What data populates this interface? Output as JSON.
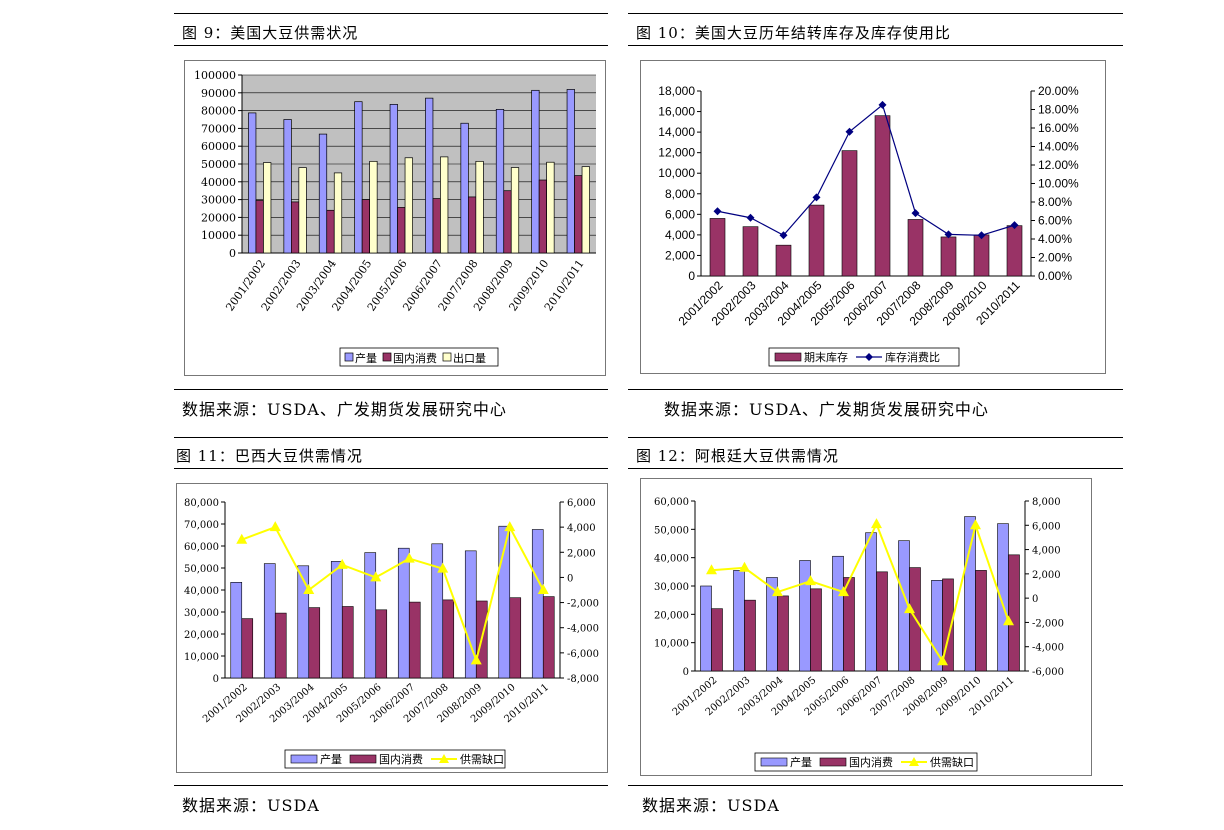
{
  "panels": [
    {
      "title": "图 9：美国大豆供需状况",
      "source": "数据来源：USDA、广发期货发展研究中心"
    },
    {
      "title": "图 10：美国大豆历年结转库存及库存使用比",
      "source": "数据来源：USDA、广发期货发展研究中心"
    },
    {
      "title": "图 11：巴西大豆供需情况",
      "source": "数据来源：USDA"
    },
    {
      "title": "图 12：阿根廷大豆供需情况",
      "source": "数据来源：USDA"
    }
  ],
  "colors": {
    "production": "#9999ff",
    "consumption": "#993366",
    "export": "#ffffcc",
    "gap": "#ffff00",
    "ratio": "#000080",
    "plot_bg": "#c0c0c0"
  },
  "chart_data": [
    {
      "type": "bar",
      "categories": [
        "2001/2002",
        "2002/2003",
        "2003/2004",
        "2004/2005",
        "2005/2006",
        "2006/2007",
        "2007/2008",
        "2008/2009",
        "2009/2010",
        "2010/2011"
      ],
      "series": [
        {
          "name": "产量",
          "values": [
            78700,
            75000,
            66800,
            85000,
            83500,
            87000,
            72900,
            80700,
            91400,
            91900
          ]
        },
        {
          "name": "国内消费",
          "values": [
            29500,
            28700,
            24000,
            30000,
            25600,
            30600,
            31500,
            35000,
            41000,
            43500
          ]
        },
        {
          "name": "出口量",
          "values": [
            50800,
            48000,
            45000,
            51500,
            53500,
            54000,
            51500,
            48000,
            51000,
            48500
          ]
        }
      ],
      "yticks": [
        "0",
        "10000",
        "20000",
        "30000",
        "40000",
        "50000",
        "60000",
        "70000",
        "80000",
        "90000",
        "100000"
      ],
      "ylim": [
        0,
        100000
      ],
      "grid": true,
      "legend": "bottom"
    },
    {
      "type": "bar+line",
      "categories": [
        "2001/2002",
        "2002/2003",
        "2003/2004",
        "2004/2005",
        "2005/2006",
        "2006/2007",
        "2007/2008",
        "2008/2009",
        "2009/2010",
        "2010/2011"
      ],
      "series": [
        {
          "name": "期末库存",
          "type": "bar",
          "axis": "left",
          "values": [
            5600,
            4800,
            3000,
            6900,
            12200,
            15600,
            5500,
            3800,
            4000,
            4900
          ]
        },
        {
          "name": "库存消费比",
          "type": "line",
          "axis": "right",
          "values": [
            7.0,
            6.3,
            4.4,
            8.5,
            15.6,
            18.5,
            6.8,
            4.5,
            4.4,
            5.5
          ]
        }
      ],
      "yticks_left": [
        "0",
        "2,000",
        "4,000",
        "6,000",
        "8,000",
        "10,000",
        "12,000",
        "14,000",
        "16,000",
        "18,000"
      ],
      "yticks_right": [
        "0.00%",
        "2.00%",
        "4.00%",
        "6.00%",
        "8.00%",
        "10.00%",
        "12.00%",
        "14.00%",
        "16.00%",
        "18.00%",
        "20.00%"
      ],
      "ylim_left": [
        0,
        18000
      ],
      "ylim_right": [
        0,
        20
      ],
      "grid": false,
      "legend": "bottom"
    },
    {
      "type": "bar+line",
      "categories": [
        "2001/2002",
        "2002/2003",
        "2003/2004",
        "2004/2005",
        "2005/2006",
        "2006/2007",
        "2007/2008",
        "2008/2009",
        "2009/2010",
        "2010/2011"
      ],
      "series": [
        {
          "name": "产量",
          "type": "bar",
          "axis": "left",
          "values": [
            43500,
            52000,
            51000,
            53000,
            57000,
            59000,
            61000,
            57800,
            69000,
            67500
          ]
        },
        {
          "name": "国内消费",
          "type": "bar",
          "axis": "left",
          "values": [
            27000,
            29500,
            32000,
            32500,
            31000,
            34500,
            35500,
            35000,
            36500,
            37000
          ]
        },
        {
          "name": "供需缺口",
          "type": "line",
          "axis": "right",
          "values": [
            3000,
            4000,
            -1000,
            1000,
            0,
            1500,
            700,
            -6600,
            4000,
            -1000
          ]
        }
      ],
      "yticks_left": [
        "0",
        "10,000",
        "20,000",
        "30,000",
        "40,000",
        "50,000",
        "60,000",
        "70,000",
        "80,000"
      ],
      "yticks_right": [
        "-8,000",
        "-6,000",
        "-4,000",
        "-2,000",
        "0",
        "2,000",
        "4,000",
        "6,000"
      ],
      "ylim_left": [
        0,
        80000
      ],
      "ylim_right": [
        -8000,
        6000
      ],
      "grid": false,
      "legend": "bottom"
    },
    {
      "type": "bar+line",
      "categories": [
        "2001/2002",
        "2002/2003",
        "2003/2004",
        "2004/2005",
        "2005/2006",
        "2006/2007",
        "2007/2008",
        "2008/2009",
        "2009/2010",
        "2010/2011"
      ],
      "series": [
        {
          "name": "产量",
          "type": "bar",
          "axis": "left",
          "values": [
            30000,
            35500,
            33000,
            39000,
            40500,
            48800,
            46000,
            32000,
            54500,
            52000
          ]
        },
        {
          "name": "国内消费",
          "type": "bar",
          "axis": "left",
          "values": [
            22000,
            25000,
            26500,
            29000,
            33000,
            35000,
            36500,
            32500,
            35500,
            41000
          ]
        },
        {
          "name": "供需缺口",
          "type": "line",
          "axis": "right",
          "values": [
            2300,
            2500,
            500,
            1400,
            500,
            6100,
            -900,
            -5200,
            6000,
            -1900
          ]
        }
      ],
      "yticks_left": [
        "0",
        "10,000",
        "20,000",
        "30,000",
        "40,000",
        "50,000",
        "60,000"
      ],
      "yticks_right": [
        "-6,000",
        "-4,000",
        "-2,000",
        "0",
        "2,000",
        "4,000",
        "6,000",
        "8,000"
      ],
      "ylim_left": [
        0,
        60000
      ],
      "ylim_right": [
        -6000,
        8000
      ],
      "grid": false,
      "legend": "bottom"
    }
  ]
}
